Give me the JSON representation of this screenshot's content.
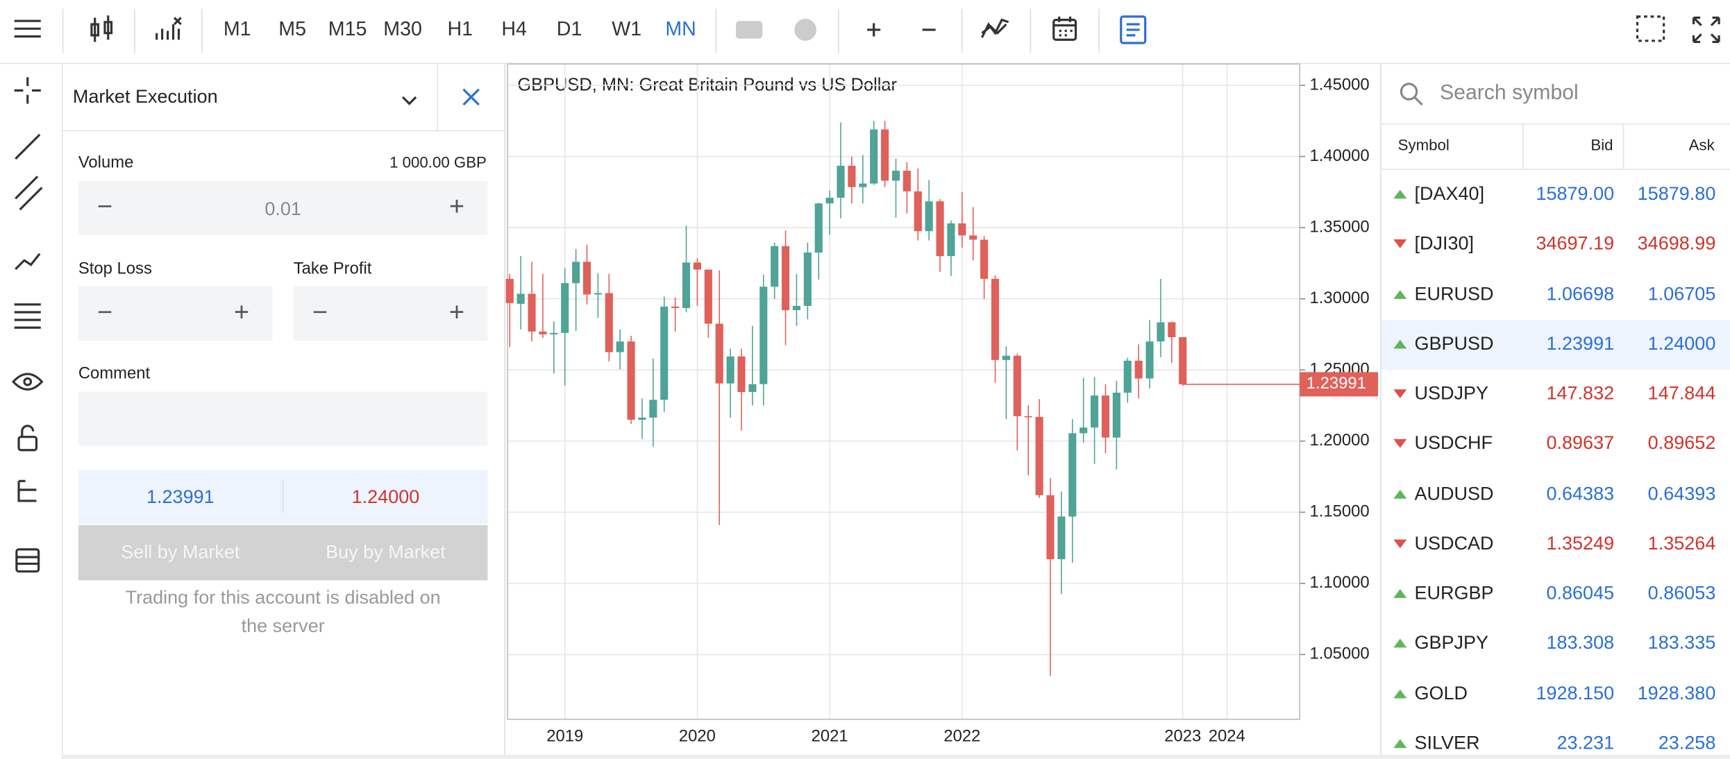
{
  "toolbar": {
    "timeframes": [
      "M1",
      "M5",
      "M15",
      "M30",
      "H1",
      "H4",
      "D1",
      "W1",
      "MN"
    ],
    "active": "MN"
  },
  "order_panel": {
    "title": "Market Execution",
    "volume_label": "Volume",
    "volume_amount": "1 000.00 GBP",
    "volume_value": "0.01",
    "stop_loss": "Stop Loss",
    "take_profit": "Take Profit",
    "comment": "Comment",
    "bid": "1.23991",
    "ask": "1.24000",
    "sell": "Sell by Market",
    "buy": "Buy by Market",
    "notice": "Trading for this account is disabled on the server"
  },
  "chart": {
    "type": "candlestick",
    "title": "GBPUSD, MN: Great Britain Pound vs US Dollar",
    "up_color": "#4fa397",
    "down_color": "#e0605a",
    "grid": true,
    "candles": [
      [
        1.314,
        1.3175,
        1.266,
        1.297
      ],
      [
        1.2965,
        1.33,
        1.2785,
        1.3035
      ],
      [
        1.3035,
        1.326,
        1.27,
        1.277
      ],
      [
        1.277,
        1.3175,
        1.2725,
        1.275
      ],
      [
        1.275,
        1.284,
        1.2475,
        1.276
      ],
      [
        1.276,
        1.3215,
        1.239,
        1.311
      ],
      [
        1.311,
        1.335,
        1.2775,
        1.326
      ],
      [
        1.326,
        1.338,
        1.296,
        1.303
      ],
      [
        1.303,
        1.318,
        1.2865,
        1.304
      ],
      [
        1.304,
        1.3175,
        1.256,
        1.2625
      ],
      [
        1.2625,
        1.2785,
        1.2505,
        1.27
      ],
      [
        1.27,
        1.274,
        1.212,
        1.215
      ],
      [
        1.215,
        1.23,
        1.2015,
        1.2165
      ],
      [
        1.2165,
        1.258,
        1.196,
        1.229
      ],
      [
        1.229,
        1.3015,
        1.2205,
        1.2945
      ],
      [
        1.2945,
        1.301,
        1.277,
        1.2935
      ],
      [
        1.2935,
        1.3515,
        1.2905,
        1.3255
      ],
      [
        1.3255,
        1.3285,
        1.295,
        1.3205
      ],
      [
        1.3205,
        1.32,
        1.2725,
        1.2825
      ],
      [
        1.2825,
        1.32,
        1.141,
        1.2405
      ],
      [
        1.2405,
        1.265,
        1.2165,
        1.2595
      ],
      [
        1.2595,
        1.265,
        1.2075,
        1.2345
      ],
      [
        1.2345,
        1.281,
        1.225,
        1.24
      ],
      [
        1.24,
        1.317,
        1.225,
        1.3085
      ],
      [
        1.3085,
        1.3395,
        1.3,
        1.337
      ],
      [
        1.337,
        1.348,
        1.2675,
        1.292
      ],
      [
        1.292,
        1.3175,
        1.281,
        1.295
      ],
      [
        1.295,
        1.3395,
        1.2855,
        1.3325
      ],
      [
        1.3325,
        1.3675,
        1.3135,
        1.367
      ],
      [
        1.367,
        1.376,
        1.345,
        1.371
      ],
      [
        1.371,
        1.424,
        1.3565,
        1.3935
      ],
      [
        1.3935,
        1.4,
        1.367,
        1.3785
      ],
      [
        1.3785,
        1.401,
        1.367,
        1.381
      ],
      [
        1.381,
        1.425,
        1.38,
        1.419
      ],
      [
        1.419,
        1.425,
        1.3785,
        1.383
      ],
      [
        1.383,
        1.3985,
        1.357,
        1.39
      ],
      [
        1.39,
        1.396,
        1.36,
        1.3755
      ],
      [
        1.3755,
        1.3915,
        1.341,
        1.3475
      ],
      [
        1.3475,
        1.3835,
        1.341,
        1.3685
      ],
      [
        1.3685,
        1.37,
        1.319,
        1.33
      ],
      [
        1.33,
        1.355,
        1.316,
        1.353
      ],
      [
        1.353,
        1.375,
        1.336,
        1.3445
      ],
      [
        1.3445,
        1.3645,
        1.327,
        1.3415
      ],
      [
        1.3415,
        1.344,
        1.3,
        1.314
      ],
      [
        1.314,
        1.3165,
        1.241,
        1.257
      ],
      [
        1.257,
        1.2665,
        1.2155,
        1.26
      ],
      [
        1.26,
        1.2615,
        1.1935,
        1.2175
      ],
      [
        1.2175,
        1.225,
        1.176,
        1.217
      ],
      [
        1.217,
        1.2295,
        1.16,
        1.162
      ],
      [
        1.162,
        1.174,
        1.035,
        1.117
      ],
      [
        1.117,
        1.1645,
        1.0925,
        1.147
      ],
      [
        1.147,
        1.2155,
        1.1145,
        1.2055
      ],
      [
        1.2055,
        1.2445,
        1.199,
        1.2095
      ],
      [
        1.2095,
        1.245,
        1.184,
        1.232
      ],
      [
        1.232,
        1.24,
        1.1915,
        1.2025
      ],
      [
        1.2025,
        1.2425,
        1.18,
        1.234
      ],
      [
        1.234,
        1.2585,
        1.227,
        1.2565
      ],
      [
        1.2565,
        1.268,
        1.23,
        1.244
      ],
      [
        1.244,
        1.285,
        1.237,
        1.27
      ],
      [
        1.27,
        1.314,
        1.259,
        1.2835
      ],
      [
        1.2835,
        1.284,
        1.255,
        1.273
      ],
      [
        1.273,
        1.2715,
        1.239,
        1.23991
      ]
    ],
    "xlim": [
      -0.2,
      71.6
    ],
    "xticks": [
      {
        "value": 5,
        "label": "2019"
      },
      {
        "value": 17,
        "label": "2020"
      },
      {
        "value": 29,
        "label": "2021"
      },
      {
        "value": 41,
        "label": "2022"
      },
      {
        "value": 61,
        "label": "2023"
      },
      {
        "value": 65,
        "label": "2024"
      }
    ],
    "ylim": [
      1.0045,
      1.465
    ],
    "yticks": [
      {
        "value": 1.45,
        "label": "1.45000"
      },
      {
        "value": 1.4,
        "label": "1.40000"
      },
      {
        "value": 1.35,
        "label": "1.35000"
      },
      {
        "value": 1.3,
        "label": "1.30000"
      },
      {
        "value": 1.25,
        "label": "1.25000"
      },
      {
        "value": 1.2,
        "label": "1.20000"
      },
      {
        "value": 1.15,
        "label": "1.15000"
      },
      {
        "value": 1.1,
        "label": "1.10000"
      },
      {
        "value": 1.05,
        "label": "1.05000"
      }
    ],
    "current_price": {
      "value": 1.23991,
      "label": "1.23991"
    }
  },
  "market_watch": {
    "search": "Search symbol",
    "columns": [
      "Symbol",
      "Bid",
      "Ask"
    ],
    "up_color": "#2a6fd6",
    "down_color": "#d0342c",
    "rows": [
      {
        "symbol": "[DAX40]",
        "bid": "15879.00",
        "ask": "15879.80",
        "direction": "up"
      },
      {
        "symbol": "[DJI30]",
        "bid": "34697.19",
        "ask": "34698.99",
        "direction": "down"
      },
      {
        "symbol": "EURUSD",
        "bid": "1.06698",
        "ask": "1.06705",
        "direction": "up"
      },
      {
        "symbol": "GBPUSD",
        "bid": "1.23991",
        "ask": "1.24000",
        "direction": "up",
        "selected": true
      },
      {
        "symbol": "USDJPY",
        "bid": "147.832",
        "ask": "147.844",
        "direction": "down"
      },
      {
        "symbol": "USDCHF",
        "bid": "0.89637",
        "ask": "0.89652",
        "direction": "down"
      },
      {
        "symbol": "AUDUSD",
        "bid": "0.64383",
        "ask": "0.64393",
        "direction": "up"
      },
      {
        "symbol": "USDCAD",
        "bid": "1.35249",
        "ask": "1.35264",
        "direction": "down"
      },
      {
        "symbol": "EURGBP",
        "bid": "0.86045",
        "ask": "0.86053",
        "direction": "up"
      },
      {
        "symbol": "GBPJPY",
        "bid": "183.308",
        "ask": "183.335",
        "direction": "up"
      },
      {
        "symbol": "GOLD",
        "bid": "1928.150",
        "ask": "1928.380",
        "direction": "up"
      },
      {
        "symbol": "SILVER",
        "bid": "23.231",
        "ask": "23.258",
        "direction": "up"
      }
    ]
  }
}
